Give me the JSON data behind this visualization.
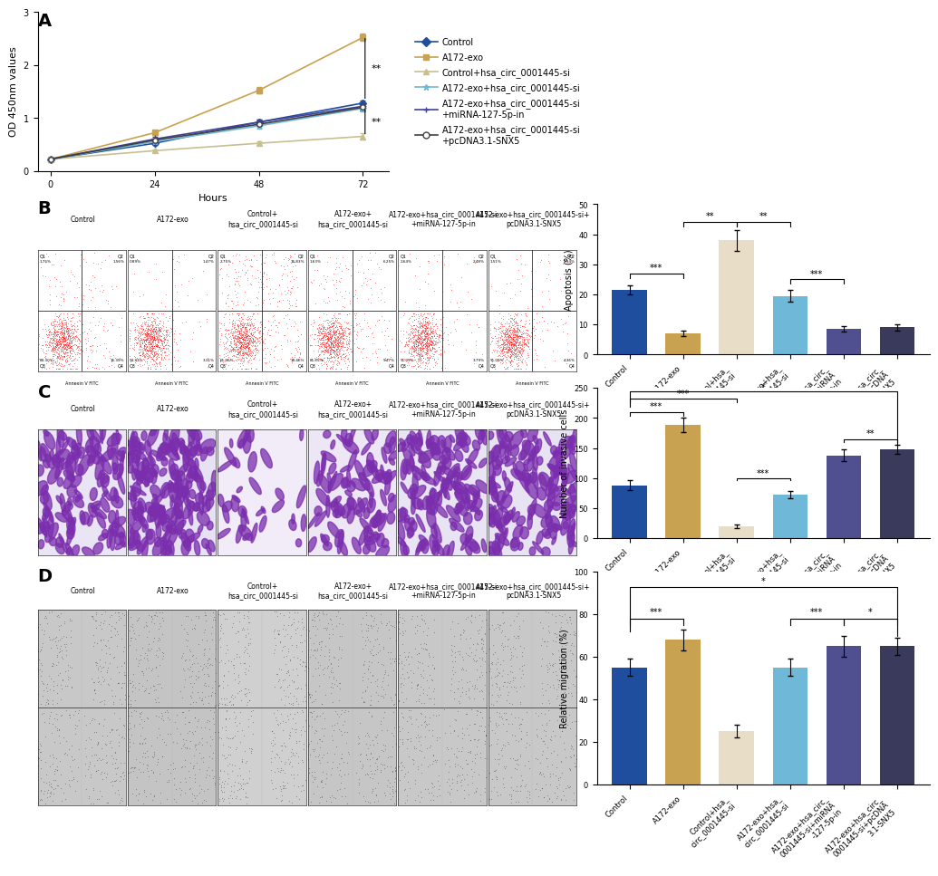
{
  "panel_A": {
    "hours": [
      0,
      24,
      48,
      72
    ],
    "series": [
      {
        "label": "Control",
        "color": "#1F4E9E",
        "marker": "D",
        "markersize": 4,
        "values": [
          0.22,
          0.52,
          0.92,
          1.28
        ],
        "errors": [
          0.01,
          0.03,
          0.04,
          0.05
        ],
        "markerfacecolor": "#1F4E9E"
      },
      {
        "label": "A172-exo",
        "color": "#C8A250",
        "marker": "s",
        "markersize": 4,
        "values": [
          0.22,
          0.72,
          1.52,
          2.52
        ],
        "errors": [
          0.01,
          0.04,
          0.06,
          0.07
        ],
        "markerfacecolor": "#C8A250"
      },
      {
        "label": "Control+hsa_circ_0001445-si",
        "color": "#C8BF90",
        "marker": "^",
        "markersize": 4,
        "values": [
          0.22,
          0.38,
          0.52,
          0.65
        ],
        "errors": [
          0.01,
          0.03,
          0.04,
          0.06
        ],
        "markerfacecolor": "#C8BF90"
      },
      {
        "label": "A172-exo+hsa_circ_0001445-si",
        "color": "#70B8D8",
        "marker": "*",
        "markersize": 6,
        "values": [
          0.22,
          0.55,
          0.85,
          1.18
        ],
        "errors": [
          0.01,
          0.03,
          0.05,
          0.06
        ],
        "markerfacecolor": "#70B8D8"
      },
      {
        "label": "A172-exo+hsa_circ_0001445-si\n+miRNA-127-5p-in",
        "color": "#4040A0",
        "marker": "+",
        "markersize": 6,
        "values": [
          0.22,
          0.6,
          0.92,
          1.22
        ],
        "errors": [
          0.01,
          0.04,
          0.05,
          0.06
        ],
        "markerfacecolor": "#4040A0"
      },
      {
        "label": "A172-exo+hsa_circ_0001445-si\n+pcDNA3.1-SNX5",
        "color": "#404040",
        "marker": "o",
        "markersize": 4,
        "values": [
          0.22,
          0.58,
          0.88,
          1.2
        ],
        "errors": [
          0.01,
          0.03,
          0.04,
          0.06
        ],
        "markerfacecolor": "white"
      }
    ],
    "ylabel": "OD 450nm values",
    "xlabel": "Hours",
    "ylim": [
      0,
      3
    ],
    "yticks": [
      0,
      1,
      2,
      3
    ]
  },
  "panel_B": {
    "values": [
      21.5,
      7.0,
      38.0,
      19.5,
      8.5,
      9.0
    ],
    "errors": [
      1.5,
      0.8,
      3.5,
      2.0,
      1.0,
      1.2
    ],
    "colors": [
      "#1F4E9E",
      "#C8A250",
      "#E8DEC8",
      "#70B8D8",
      "#505090",
      "#3A3A5C"
    ],
    "ylabel": "Apoptosis (%)",
    "ylim": [
      0,
      50
    ],
    "yticks": [
      0,
      10,
      20,
      30,
      40,
      50
    ]
  },
  "panel_C": {
    "values": [
      88,
      188,
      20,
      73,
      138,
      148
    ],
    "errors": [
      8,
      12,
      3,
      6,
      10,
      8
    ],
    "colors": [
      "#1F4E9E",
      "#C8A250",
      "#E8DEC8",
      "#70B8D8",
      "#505090",
      "#3A3A5C"
    ],
    "ylabel": "Number of invasive cells",
    "ylim": [
      0,
      250
    ],
    "yticks": [
      0,
      50,
      100,
      150,
      200,
      250
    ]
  },
  "panel_D": {
    "values": [
      55,
      68,
      25,
      55,
      65,
      65
    ],
    "errors": [
      4,
      5,
      3,
      4,
      5,
      4
    ],
    "colors": [
      "#1F4E9E",
      "#C8A250",
      "#E8DEC8",
      "#70B8D8",
      "#505090",
      "#3A3A5C"
    ],
    "ylabel": "Relative migration (%)",
    "ylim": [
      0,
      100
    ],
    "yticks": [
      0,
      20,
      40,
      60,
      80,
      100
    ]
  },
  "col_labels": [
    "Control",
    "A172-exo",
    "Control+\nhsa_circ_0001445-si",
    "A172-exo+\nhsa_circ_0001445-si",
    "A172-exo+hsa_circ_0001445-si\n+miRNA-127-5p-in",
    "A172-exo+hsa_circ_0001445-si+\npcDNA3.1-SNX5"
  ],
  "short_xlabels": [
    "Control",
    "A172-exo",
    "Control+hsa_\ncirc_0001445-si",
    "A172-exo+hsa_\ncirc_0001445-si",
    "A172-exo+hsa_circ_\n0001445-si+miRNA\n-127-5p-in",
    "A172-exo+hsa_circ_\n0001445-si+pcDNA\n3.1-SNX5"
  ],
  "background_color": "#ffffff"
}
